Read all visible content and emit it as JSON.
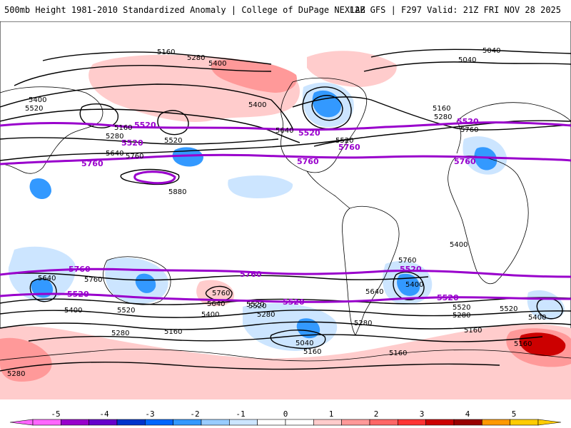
{
  "header": {
    "title_left": "500mb Height 1981-2010 Standardized Anomaly | College of DuPage NEXLAB",
    "title_right": "12Z GFS | F297 Valid: 21Z FRI NOV 28 2025"
  },
  "map": {
    "product": "500mb Height Standardized Anomaly",
    "model": "GFS",
    "contour_labels_black": [
      "5160",
      "5280",
      "5400",
      "5040",
      "5040",
      "5400",
      "5520",
      "5160",
      "5280",
      "5640",
      "5760",
      "5520",
      "5160",
      "5280",
      "5400",
      "5760",
      "5640",
      "5520",
      "5880",
      "5640",
      "5760",
      "5520",
      "5400",
      "5520",
      "5760",
      "5640",
      "5520",
      "5400",
      "5280",
      "5160",
      "5040",
      "5160",
      "5760",
      "5640",
      "5400",
      "5520",
      "5280",
      "5160",
      "5280",
      "5400",
      "5160",
      "5280",
      "5520",
      "5400",
      "5280",
      "5160"
    ],
    "contour_labels_purple": [
      "5520",
      "5760",
      "5520",
      "5760",
      "5520",
      "5760",
      "5760",
      "5520",
      "5760",
      "5520",
      "5520",
      "5520",
      "5760",
      "5520"
    ],
    "colors": {
      "contour": "#000000",
      "highlight_contour": "#9900cc",
      "land_outline": "#000000"
    }
  },
  "colorbar": {
    "ticks": [
      "-5",
      "-4",
      "-3",
      "-2",
      "-1",
      "0",
      "1",
      "2",
      "3",
      "4",
      "5"
    ],
    "colors": [
      "#ff66ff",
      "#9900cc",
      "#6600cc",
      "#0033cc",
      "#0066ff",
      "#3399ff",
      "#99ccff",
      "#cce5ff",
      "#ffffff",
      "#ffffff",
      "#ffcccc",
      "#ff9999",
      "#ff6666",
      "#ff3333",
      "#cc0000",
      "#990000",
      "#ff9900",
      "#ffcc00"
    ]
  }
}
